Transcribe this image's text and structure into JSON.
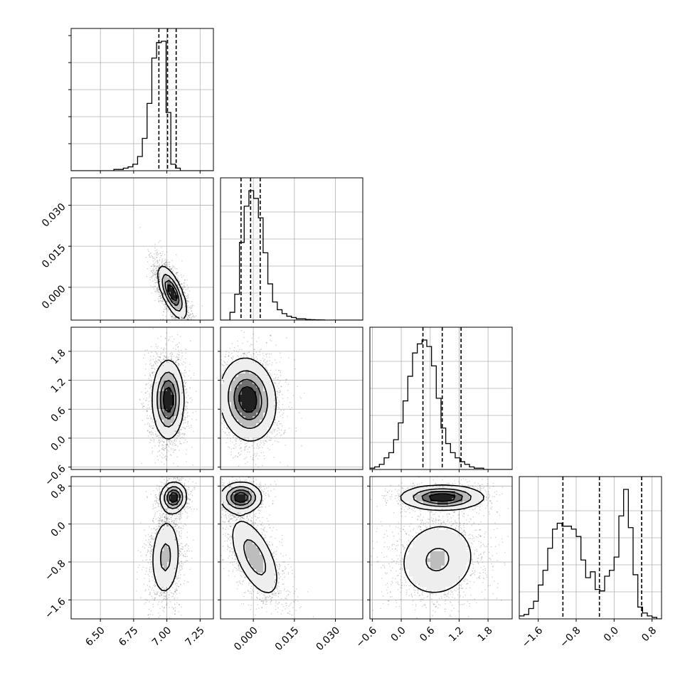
{
  "figure": {
    "type": "corner-plot",
    "background": "#ffffff",
    "ink": "#000000",
    "grid_color": "#b0b0b0"
  },
  "chart_data": {
    "type": "corner",
    "grid": true,
    "parameters": [
      {
        "range": [
          6.28,
          7.35
        ],
        "ticks": [
          6.5,
          6.75,
          7.0,
          7.25
        ],
        "tick_labels": [
          "6.50",
          "6.75",
          "7.00",
          "7.25"
        ],
        "quantiles": [
          6.94,
          7.005,
          7.07
        ],
        "hist_bin_start": 6.28,
        "hist_bin_width": 0.0357,
        "hist": [
          0,
          0,
          0,
          0,
          0,
          0,
          0,
          0,
          0,
          0.01,
          0.01,
          0.02,
          0.03,
          0.05,
          0.11,
          0.25,
          0.52,
          0.87,
          0.99,
          1.0,
          0.45,
          0.05,
          0.02,
          0,
          0,
          0,
          0,
          0,
          0,
          0
        ]
      },
      {
        "range": [
          -0.012,
          0.04
        ],
        "ticks": [
          0.0,
          0.015,
          0.03
        ],
        "tick_labels": [
          "0.000",
          "0.015",
          "0.030"
        ],
        "quantiles": [
          -0.0045,
          -0.001,
          0.0025
        ],
        "hist_bin_start": -0.012,
        "hist_bin_width": 0.00173,
        "hist": [
          0,
          0,
          0.06,
          0.2,
          0.6,
          0.88,
          1.0,
          0.94,
          0.79,
          0.52,
          0.28,
          0.14,
          0.08,
          0.05,
          0.03,
          0.02,
          0.01,
          0.01,
          0.005,
          0.003,
          0.002,
          0.001,
          0,
          0,
          0,
          0,
          0,
          0,
          0,
          0
        ]
      },
      {
        "range": [
          -0.65,
          2.3
        ],
        "ticks": [
          -0.6,
          0.0,
          0.6,
          1.2,
          1.8
        ],
        "tick_labels": [
          "−0.6",
          "0.0",
          "0.6",
          "1.2",
          "1.8"
        ],
        "quantiles": [
          0.45,
          0.85,
          1.24
        ],
        "hist_bin_start": -0.65,
        "hist_bin_width": 0.0983,
        "hist": [
          0.01,
          0.02,
          0.04,
          0.09,
          0.13,
          0.23,
          0.36,
          0.53,
          0.72,
          0.9,
          0.97,
          1.0,
          0.95,
          0.8,
          0.55,
          0.32,
          0.2,
          0.13,
          0.09,
          0.06,
          0.04,
          0.02,
          0.01,
          0.01,
          0,
          0,
          0,
          0,
          0,
          0
        ]
      },
      {
        "range": [
          -2.0,
          1.0
        ],
        "ticks": [
          -1.6,
          -0.8,
          0.0,
          0.8
        ],
        "tick_labels": [
          "−1.6",
          "−0.8",
          "0.0",
          "0.8"
        ],
        "quantiles": [
          -1.08,
          -0.31,
          0.58
        ],
        "hist_bin_start": -2.0,
        "hist_bin_width": 0.1,
        "hist": [
          0.02,
          0.03,
          0.07,
          0.12,
          0.23,
          0.33,
          0.48,
          0.61,
          0.65,
          0.63,
          0.63,
          0.61,
          0.56,
          0.4,
          0.28,
          0.32,
          0.2,
          0.19,
          0.29,
          0.33,
          0.42,
          0.7,
          0.88,
          0.62,
          0.3,
          0.08,
          0.04,
          0.02,
          0.01,
          0
        ]
      }
    ],
    "pairs": [
      {
        "x": 0,
        "y": 1,
        "modes": [
          {
            "mx": 7.04,
            "my": -0.002,
            "sx": 0.05,
            "sy": 0.0045,
            "rho": -0.68,
            "w": 1
          }
        ]
      },
      {
        "x": 0,
        "y": 2,
        "modes": [
          {
            "mx": 7.01,
            "my": 0.8,
            "sx": 0.055,
            "sy": 0.38,
            "rho": 0.0,
            "w": 1
          }
        ]
      },
      {
        "x": 1,
        "y": 2,
        "modes": [
          {
            "mx": -0.002,
            "my": 0.8,
            "sx": 0.0048,
            "sy": 0.4,
            "rho": -0.1,
            "w": 1
          }
        ]
      },
      {
        "x": 0,
        "y": 3,
        "modes": [
          {
            "mx": 7.05,
            "my": 0.56,
            "sx": 0.045,
            "sy": 0.15,
            "rho": 0.05,
            "w": 0.42
          },
          {
            "mx": 6.99,
            "my": -0.7,
            "sx": 0.055,
            "sy": 0.42,
            "rho": 0.1,
            "w": 0.58
          }
        ]
      },
      {
        "x": 1,
        "y": 3,
        "modes": [
          {
            "mx": -0.0045,
            "my": 0.56,
            "sx": 0.0035,
            "sy": 0.15,
            "rho": 0.0,
            "w": 0.42
          },
          {
            "mx": 0.0005,
            "my": -0.7,
            "sx": 0.0045,
            "sy": 0.42,
            "rho": -0.6,
            "w": 0.58
          }
        ]
      },
      {
        "x": 2,
        "y": 3,
        "modes": [
          {
            "mx": 0.85,
            "my": 0.56,
            "sx": 0.4,
            "sy": 0.12,
            "rho": 0.0,
            "w": 0.42
          },
          {
            "mx": 0.75,
            "my": -0.75,
            "sx": 0.42,
            "sy": 0.42,
            "rho": 0.1,
            "w": 0.58
          }
        ]
      }
    ]
  }
}
